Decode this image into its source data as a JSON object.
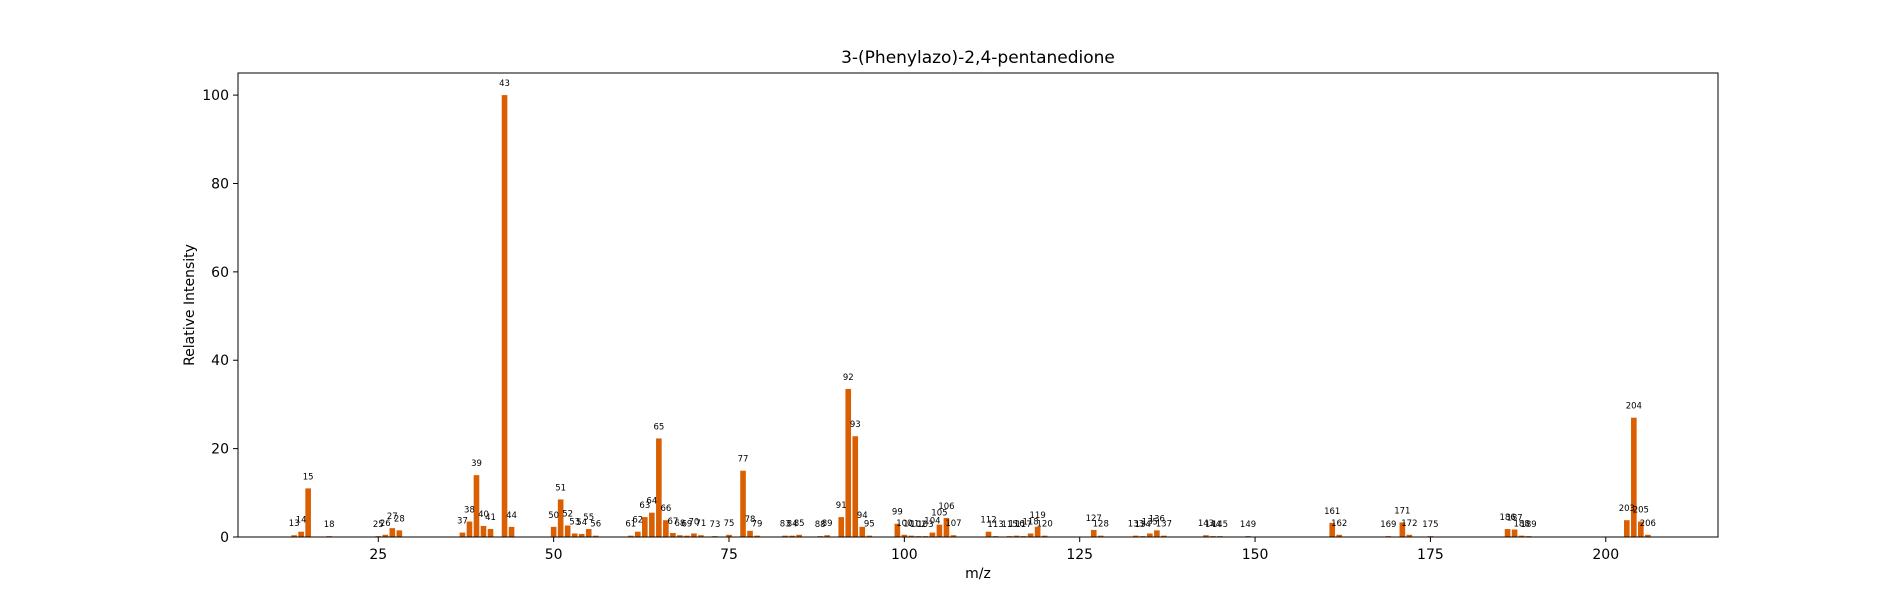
{
  "chart_data": {
    "type": "bar",
    "title": "3-(Phenylazo)-2,4-pentanedione",
    "xlabel": "m/z",
    "ylabel": "Relative Intensity",
    "xlim": [
      5,
      216
    ],
    "ylim": [
      0,
      105
    ],
    "xticks": [
      25,
      50,
      75,
      100,
      125,
      150,
      175,
      200
    ],
    "yticks": [
      0,
      20,
      40,
      60,
      80,
      100
    ],
    "grid": false,
    "bar_color": "#d95f02",
    "peaks": [
      {
        "x": 13,
        "y": 0.4
      },
      {
        "x": 14,
        "y": 1.2
      },
      {
        "x": 15,
        "y": 11.0
      },
      {
        "x": 18,
        "y": 0.2
      },
      {
        "x": 25,
        "y": 0.2
      },
      {
        "x": 26,
        "y": 0.5
      },
      {
        "x": 27,
        "y": 2.0
      },
      {
        "x": 28,
        "y": 1.5
      },
      {
        "x": 37,
        "y": 1.0
      },
      {
        "x": 38,
        "y": 3.5
      },
      {
        "x": 39,
        "y": 14.0
      },
      {
        "x": 40,
        "y": 2.5
      },
      {
        "x": 41,
        "y": 1.8
      },
      {
        "x": 43,
        "y": 100.0
      },
      {
        "x": 44,
        "y": 2.3
      },
      {
        "x": 50,
        "y": 2.3
      },
      {
        "x": 51,
        "y": 8.5
      },
      {
        "x": 52,
        "y": 2.6
      },
      {
        "x": 53,
        "y": 0.8
      },
      {
        "x": 54,
        "y": 0.7
      },
      {
        "x": 55,
        "y": 1.8
      },
      {
        "x": 56,
        "y": 0.3
      },
      {
        "x": 61,
        "y": 0.3
      },
      {
        "x": 62,
        "y": 1.2
      },
      {
        "x": 63,
        "y": 4.5
      },
      {
        "x": 64,
        "y": 5.5
      },
      {
        "x": 65,
        "y": 22.3
      },
      {
        "x": 66,
        "y": 3.8
      },
      {
        "x": 67,
        "y": 0.9
      },
      {
        "x": 68,
        "y": 0.4
      },
      {
        "x": 69,
        "y": 0.3
      },
      {
        "x": 70,
        "y": 0.8
      },
      {
        "x": 71,
        "y": 0.4
      },
      {
        "x": 73,
        "y": 0.2
      },
      {
        "x": 75,
        "y": 0.5
      },
      {
        "x": 77,
        "y": 15.0
      },
      {
        "x": 78,
        "y": 1.4
      },
      {
        "x": 79,
        "y": 0.3
      },
      {
        "x": 83,
        "y": 0.3
      },
      {
        "x": 84,
        "y": 0.3
      },
      {
        "x": 85,
        "y": 0.5
      },
      {
        "x": 88,
        "y": 0.2
      },
      {
        "x": 89,
        "y": 0.4
      },
      {
        "x": 91,
        "y": 4.5
      },
      {
        "x": 92,
        "y": 33.5
      },
      {
        "x": 93,
        "y": 22.8
      },
      {
        "x": 94,
        "y": 2.3
      },
      {
        "x": 95,
        "y": 0.3
      },
      {
        "x": 99,
        "y": 3.0
      },
      {
        "x": 100,
        "y": 0.5
      },
      {
        "x": 101,
        "y": 0.3
      },
      {
        "x": 102,
        "y": 0.2
      },
      {
        "x": 103,
        "y": 0.2
      },
      {
        "x": 104,
        "y": 1.0
      },
      {
        "x": 105,
        "y": 2.8
      },
      {
        "x": 106,
        "y": 4.3
      },
      {
        "x": 107,
        "y": 0.4
      },
      {
        "x": 112,
        "y": 1.2
      },
      {
        "x": 113,
        "y": 0.2
      },
      {
        "x": 115,
        "y": 0.2
      },
      {
        "x": 116,
        "y": 0.3
      },
      {
        "x": 117,
        "y": 0.2
      },
      {
        "x": 118,
        "y": 0.8
      },
      {
        "x": 119,
        "y": 2.3
      },
      {
        "x": 120,
        "y": 0.3
      },
      {
        "x": 127,
        "y": 1.6
      },
      {
        "x": 128,
        "y": 0.3
      },
      {
        "x": 133,
        "y": 0.3
      },
      {
        "x": 134,
        "y": 0.2
      },
      {
        "x": 135,
        "y": 0.8
      },
      {
        "x": 136,
        "y": 1.5
      },
      {
        "x": 137,
        "y": 0.3
      },
      {
        "x": 143,
        "y": 0.4
      },
      {
        "x": 144,
        "y": 0.2
      },
      {
        "x": 145,
        "y": 0.2
      },
      {
        "x": 149,
        "y": 0.2
      },
      {
        "x": 161,
        "y": 3.2
      },
      {
        "x": 162,
        "y": 0.5
      },
      {
        "x": 169,
        "y": 0.2
      },
      {
        "x": 171,
        "y": 3.3
      },
      {
        "x": 172,
        "y": 0.5
      },
      {
        "x": 175,
        "y": 0.2
      },
      {
        "x": 186,
        "y": 1.8
      },
      {
        "x": 187,
        "y": 1.7
      },
      {
        "x": 188,
        "y": 0.3
      },
      {
        "x": 189,
        "y": 0.2
      },
      {
        "x": 203,
        "y": 3.8
      },
      {
        "x": 204,
        "y": 27.0
      },
      {
        "x": 205,
        "y": 3.5
      },
      {
        "x": 206,
        "y": 0.5
      }
    ]
  }
}
